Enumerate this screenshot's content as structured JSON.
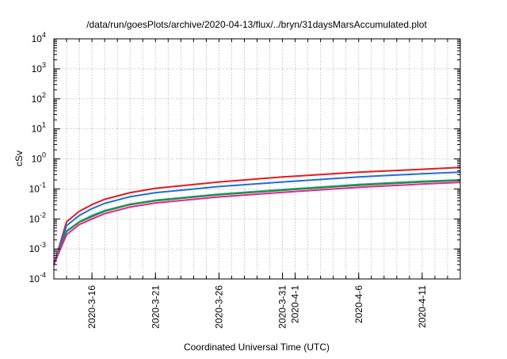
{
  "chart_data": {
    "type": "line",
    "title": "/data/run/goesPlots/archive/2020-04-13/flux/../bryn/31daysMarsAccumulated.plot",
    "xlabel": "Coordinated Universal Time (UTC)",
    "ylabel": "cSv",
    "yscale": "log",
    "ylim": [
      0.0001,
      10000
    ],
    "xlim": [
      "2020-03-13",
      "2020-04-14"
    ],
    "grid": true,
    "y_ticks": [
      {
        "value": 0.0001,
        "base": "10",
        "exp": "-4"
      },
      {
        "value": 0.001,
        "base": "10",
        "exp": "-3"
      },
      {
        "value": 0.01,
        "base": "10",
        "exp": "-2"
      },
      {
        "value": 0.1,
        "base": "10",
        "exp": "-1"
      },
      {
        "value": 1,
        "base": "10",
        "exp": "0"
      },
      {
        "value": 10,
        "base": "10",
        "exp": "1"
      },
      {
        "value": 100,
        "base": "10",
        "exp": "2"
      },
      {
        "value": 1000,
        "base": "10",
        "exp": "3"
      },
      {
        "value": 10000,
        "base": "10",
        "exp": "4"
      }
    ],
    "x_ticks": [
      {
        "date": "2020-03-16",
        "label": "2020-3-16"
      },
      {
        "date": "2020-03-21",
        "label": "2020-3-21"
      },
      {
        "date": "2020-03-26",
        "label": "2020-3-26"
      },
      {
        "date": "2020-03-31",
        "label": "2020-3-31"
      },
      {
        "date": "2020-04-01",
        "label": "2020-4-1"
      },
      {
        "date": "2020-04-06",
        "label": "2020-4-6"
      },
      {
        "date": "2020-04-11",
        "label": "2020-4-11"
      }
    ],
    "x": [
      "2020-03-13",
      "2020-03-14",
      "2020-03-15",
      "2020-03-16",
      "2020-03-17",
      "2020-03-19",
      "2020-03-21",
      "2020-03-26",
      "2020-03-31",
      "2020-04-06",
      "2020-04-11",
      "2020-04-14"
    ],
    "series": [
      {
        "color": "#e31a1c",
        "values": [
          0.0003,
          0.008,
          0.018,
          0.03,
          0.045,
          0.075,
          0.105,
          0.17,
          0.25,
          0.36,
          0.45,
          0.52
        ]
      },
      {
        "color": "#1f6fd6",
        "values": [
          0.0003,
          0.006,
          0.013,
          0.022,
          0.033,
          0.055,
          0.075,
          0.12,
          0.17,
          0.25,
          0.32,
          0.36
        ]
      },
      {
        "color": "#17a398",
        "values": [
          0.0003,
          0.004,
          0.008,
          0.013,
          0.019,
          0.031,
          0.042,
          0.067,
          0.095,
          0.14,
          0.18,
          0.2
        ]
      },
      {
        "color": "#2e8b3a",
        "values": [
          0.0003,
          0.0038,
          0.0078,
          0.012,
          0.018,
          0.03,
          0.04,
          0.064,
          0.09,
          0.133,
          0.17,
          0.19
        ]
      },
      {
        "color": "#e0249a",
        "values": [
          0.0003,
          0.003,
          0.0065,
          0.01,
          0.015,
          0.025,
          0.034,
          0.054,
          0.077,
          0.113,
          0.145,
          0.165
        ]
      }
    ]
  }
}
